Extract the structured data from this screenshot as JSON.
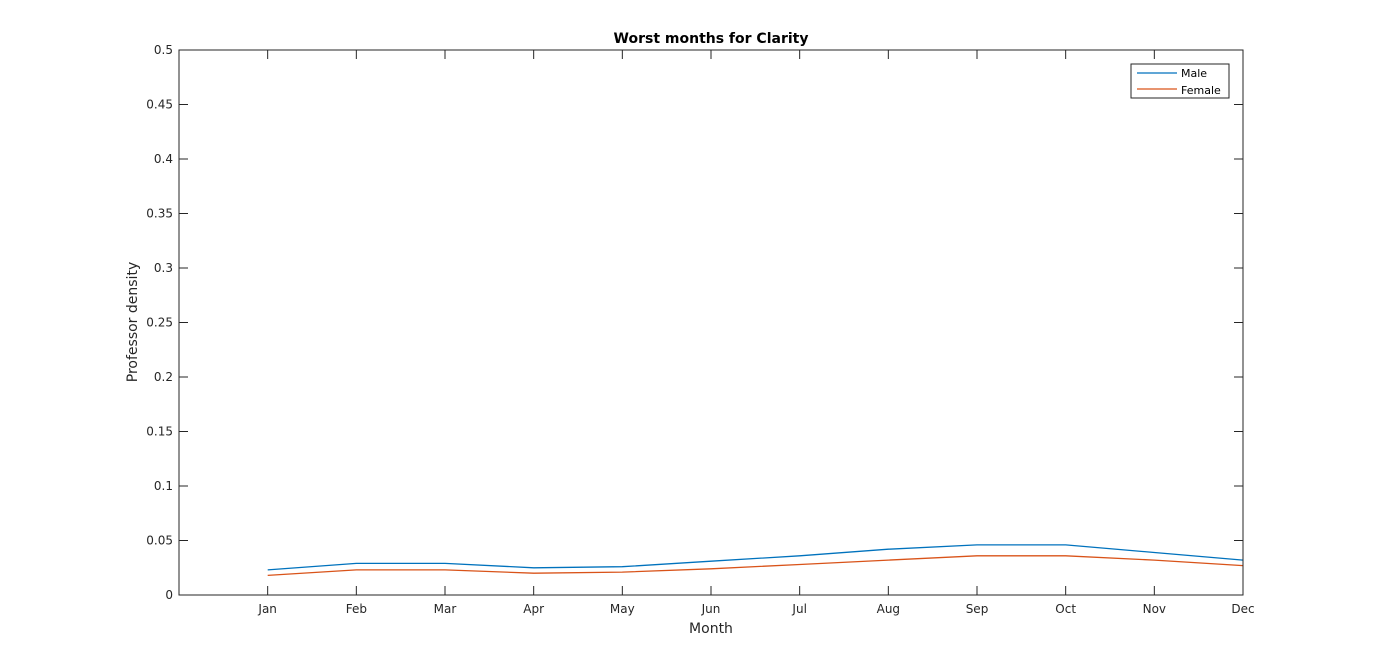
{
  "chart_data": {
    "type": "line",
    "title": "Worst months for Clarity",
    "xlabel": "Month",
    "ylabel": "Professor density",
    "categories": [
      "Jan",
      "Feb",
      "Mar",
      "Apr",
      "May",
      "Jun",
      "Jul",
      "Aug",
      "Sep",
      "Oct",
      "Nov",
      "Dec"
    ],
    "xlim": [
      0,
      12
    ],
    "ylim": [
      0,
      0.5
    ],
    "yticks": [
      "0",
      "0.05",
      "0.1",
      "0.15",
      "0.2",
      "0.25",
      "0.3",
      "0.35",
      "0.4",
      "0.45",
      "0.5"
    ],
    "grid": false,
    "legend_position": "top-right",
    "series": [
      {
        "name": "Male",
        "color": "#0072BD",
        "values": [
          0.023,
          0.029,
          0.029,
          0.025,
          0.026,
          0.031,
          0.036,
          0.042,
          0.046,
          0.046,
          0.039,
          0.032
        ]
      },
      {
        "name": "Female",
        "color": "#D95319",
        "values": [
          0.018,
          0.023,
          0.023,
          0.02,
          0.021,
          0.024,
          0.028,
          0.032,
          0.036,
          0.036,
          0.032,
          0.027
        ]
      }
    ]
  }
}
